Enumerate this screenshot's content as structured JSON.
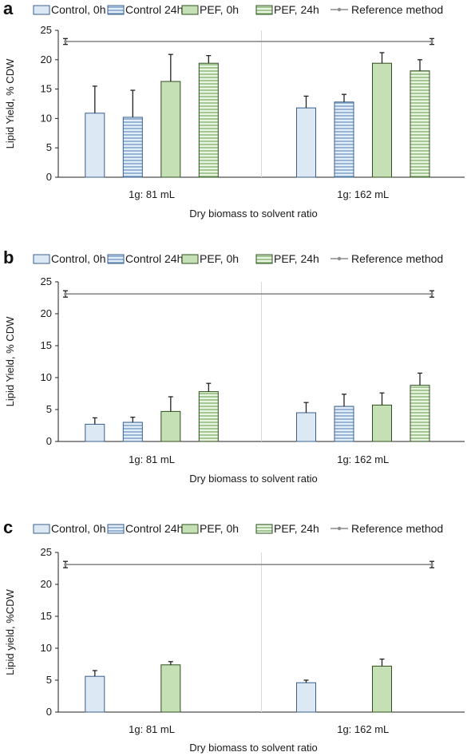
{
  "colors": {
    "control_fill": "#dce9f5",
    "control_stroke": "#3a5f8a",
    "control_stripe": "#6f95c2",
    "pef_fill": "#c5e0b4",
    "pef_stroke": "#2f4f1f",
    "pef_stripe": "#7fb069",
    "reference_line": "#8c8c8c",
    "axis": "#222222",
    "separator": "#d9d9d9"
  },
  "chart_data": [
    {
      "type": "bar",
      "panel": "a",
      "categories": [
        "1g: 81 mL",
        "1g: 162 mL"
      ],
      "xlabel": "Dry biomass to solvent ratio",
      "ylabel": "Lipid Yield, % CDW",
      "ylim": [
        0,
        25
      ],
      "yticks": [
        0,
        5,
        10,
        15,
        20,
        25
      ],
      "legend_position": "top",
      "series": [
        {
          "name": "Control, 0h",
          "pattern": "solid",
          "color": "control",
          "values": [
            10.9,
            11.8
          ],
          "errors": [
            4.6,
            2.0
          ]
        },
        {
          "name": "Control 24h",
          "pattern": "striped",
          "color": "control",
          "values": [
            10.2,
            12.8
          ],
          "errors": [
            4.6,
            1.3
          ]
        },
        {
          "name": "PEF, 0h",
          "pattern": "solid",
          "color": "pef",
          "values": [
            16.3,
            19.4
          ],
          "errors": [
            4.6,
            1.8
          ]
        },
        {
          "name": "PEF, 24h",
          "pattern": "striped",
          "color": "pef",
          "values": [
            19.4,
            18.1
          ],
          "errors": [
            1.3,
            1.9
          ]
        }
      ],
      "reference": {
        "name": "Reference method",
        "value": 23.1,
        "error": 0.5
      }
    },
    {
      "type": "bar",
      "panel": "b",
      "categories": [
        "1g: 81 mL",
        "1g: 162 mL"
      ],
      "xlabel": "Dry biomass to solvent ratio",
      "ylabel": "Lipid Yield, % CDW",
      "ylim": [
        0,
        25
      ],
      "yticks": [
        0,
        5,
        10,
        15,
        20,
        25
      ],
      "legend_position": "top",
      "series": [
        {
          "name": "Control, 0h",
          "pattern": "solid",
          "color": "control",
          "values": [
            2.7,
            4.5
          ],
          "errors": [
            1.0,
            1.6
          ]
        },
        {
          "name": "Control 24h",
          "pattern": "striped",
          "color": "control",
          "values": [
            3.0,
            5.5
          ],
          "errors": [
            0.8,
            1.9
          ]
        },
        {
          "name": "PEF, 0h",
          "pattern": "solid",
          "color": "pef",
          "values": [
            4.7,
            5.7
          ],
          "errors": [
            2.3,
            1.9
          ]
        },
        {
          "name": "PEF, 24h",
          "pattern": "striped",
          "color": "pef",
          "values": [
            7.8,
            8.8
          ],
          "errors": [
            1.3,
            1.9
          ]
        }
      ],
      "reference": {
        "name": "Reference method",
        "value": 23.1,
        "error": 0.5
      }
    },
    {
      "type": "bar",
      "panel": "c",
      "categories": [
        "1g: 81 mL",
        "1g: 162 mL"
      ],
      "xlabel": "Dry biomass to solvent ratio",
      "ylabel": "Lipid yield, %CDW",
      "ylim": [
        0,
        25
      ],
      "yticks": [
        0,
        5,
        10,
        15,
        20,
        25
      ],
      "legend_position": "top",
      "series": [
        {
          "name": "Control, 0h",
          "pattern": "solid",
          "color": "control",
          "values": [
            5.6,
            4.6
          ],
          "errors": [
            0.9,
            0.4
          ]
        },
        {
          "name": "Control 24h",
          "pattern": "striped",
          "color": "control",
          "values": [
            null,
            null
          ],
          "errors": [
            null,
            null
          ]
        },
        {
          "name": "PEF, 0h",
          "pattern": "solid",
          "color": "pef",
          "values": [
            7.4,
            7.2
          ],
          "errors": [
            0.5,
            1.1
          ]
        },
        {
          "name": "PEF, 24h",
          "pattern": "striped",
          "color": "pef",
          "values": [
            null,
            null
          ],
          "errors": [
            null,
            null
          ]
        }
      ],
      "reference": {
        "name": "Reference method",
        "value": 23.1,
        "error": 0.5
      }
    }
  ]
}
